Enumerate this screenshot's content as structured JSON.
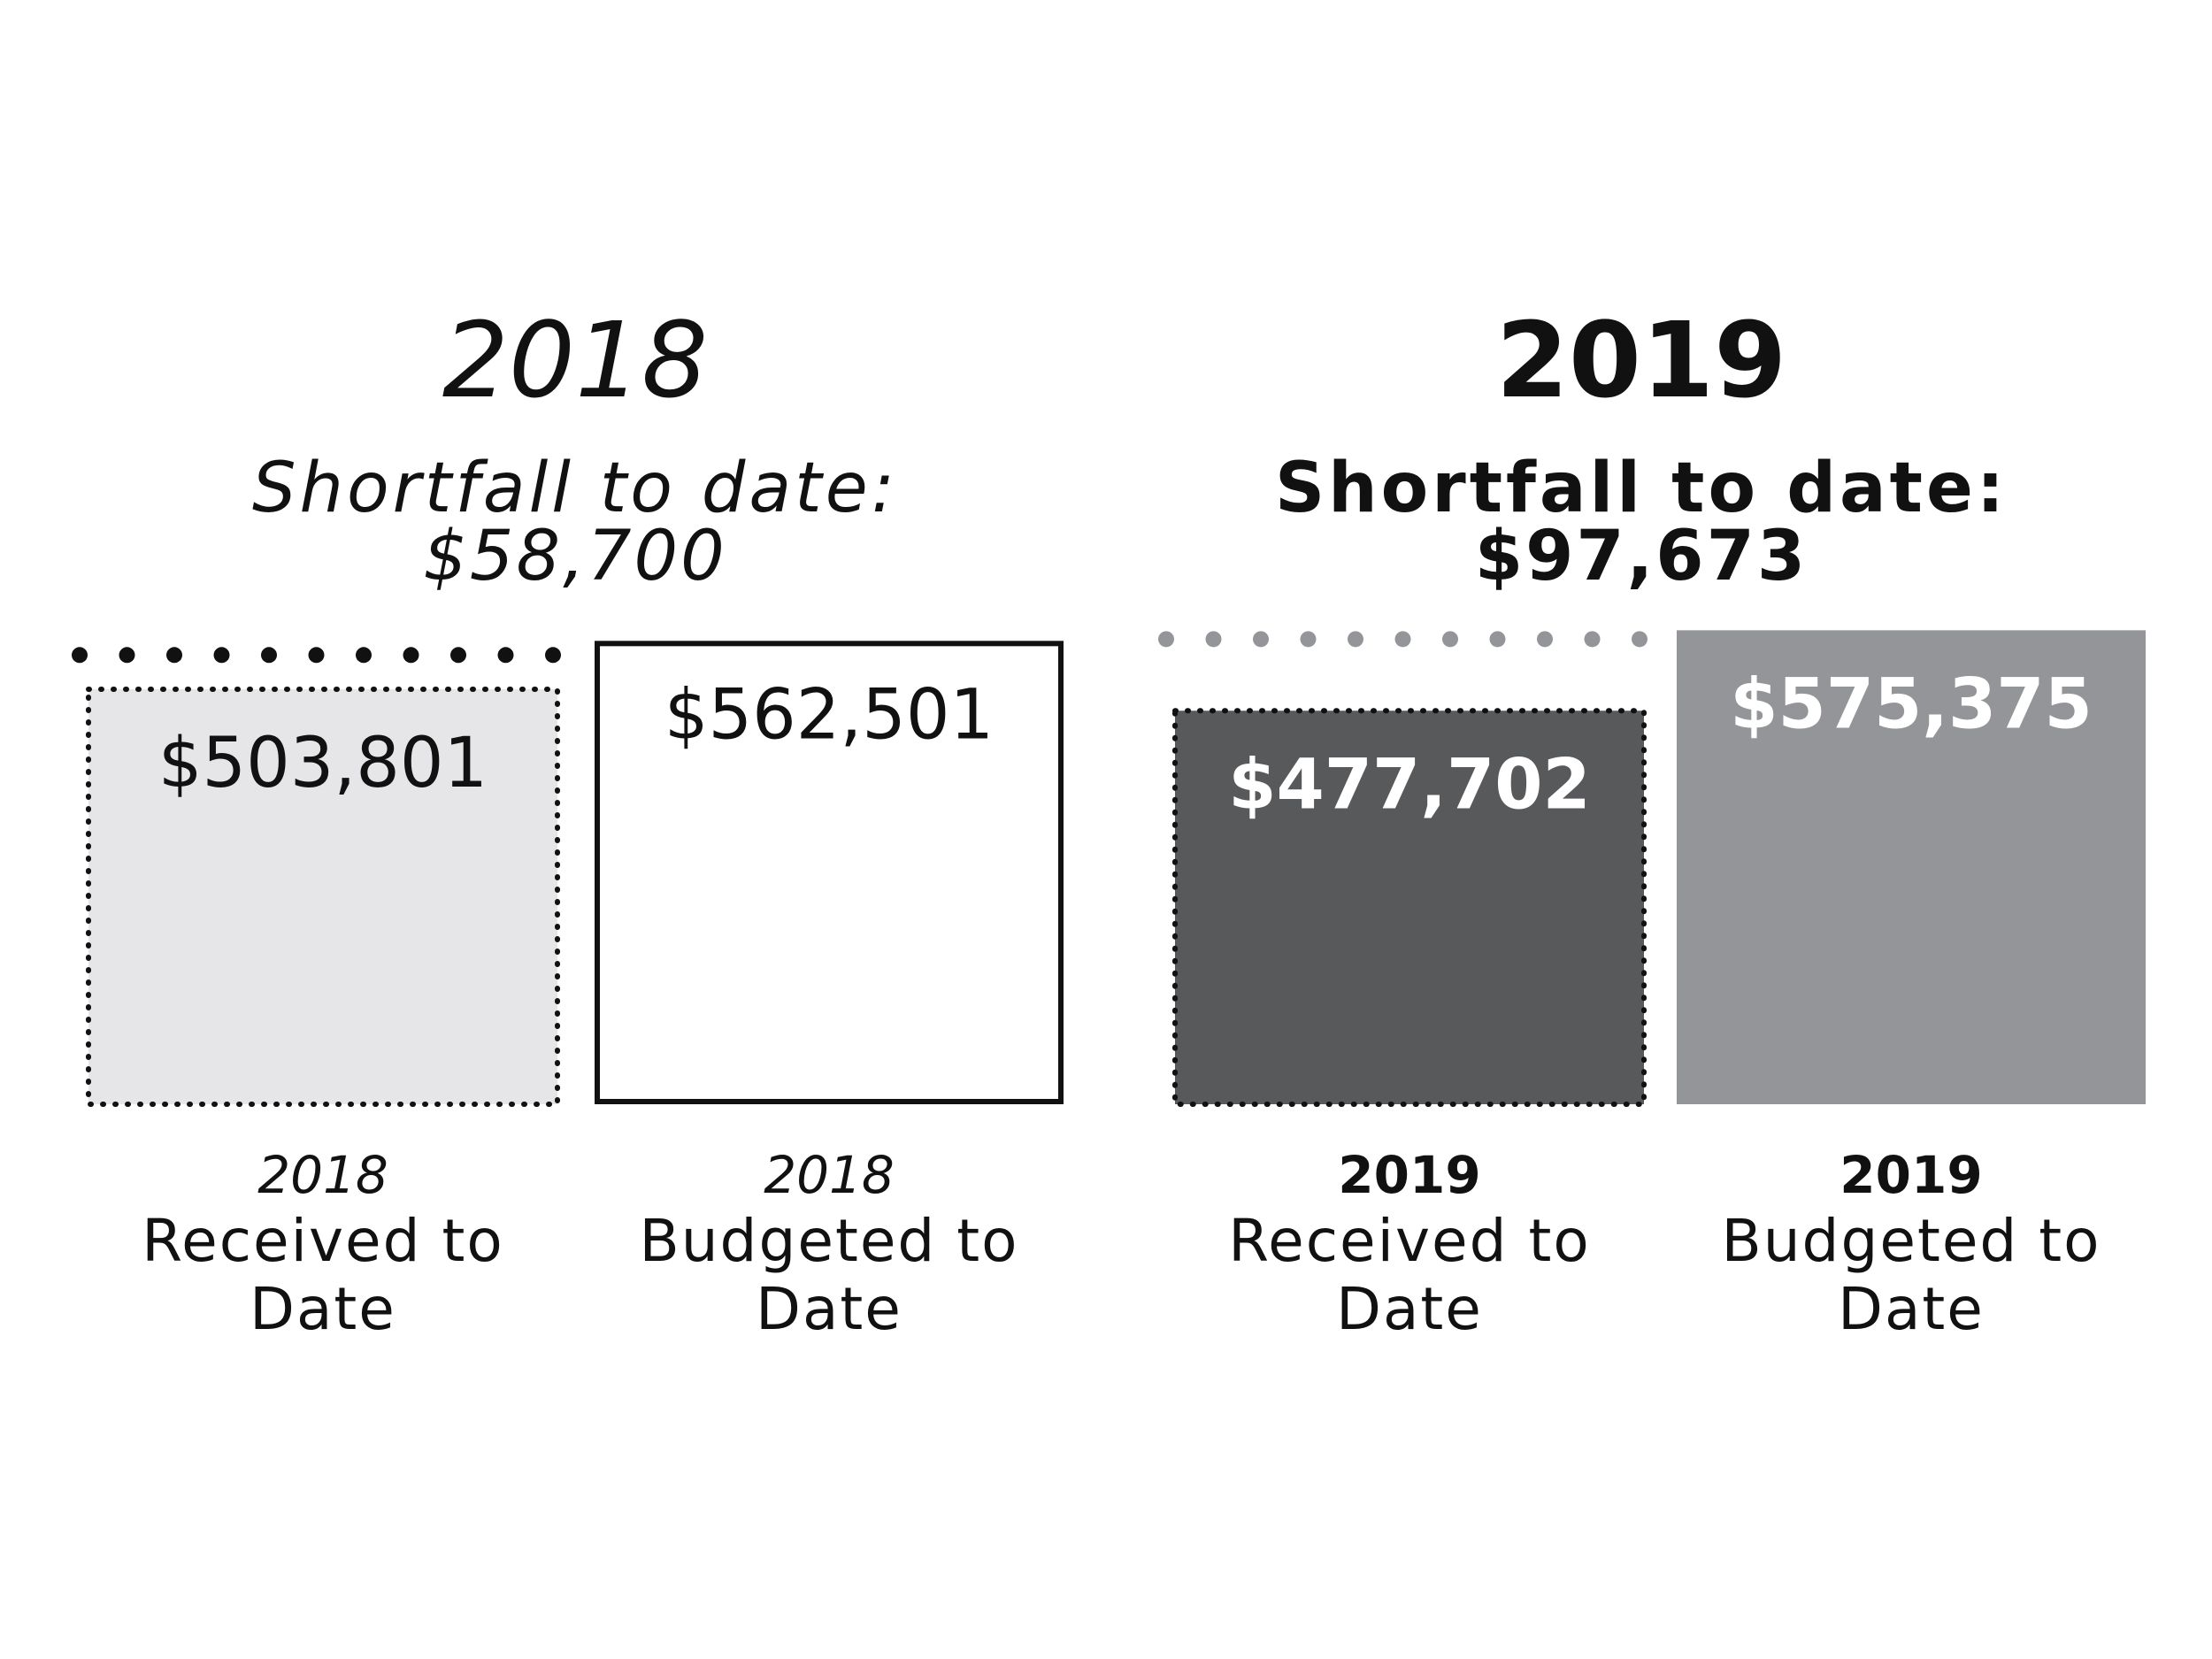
{
  "chart_data": {
    "type": "bar",
    "groups": [
      {
        "year": "2018",
        "style": "italic",
        "shortfall_label": "Shortfall to date:",
        "shortfall_value": "$58,700",
        "bars": [
          {
            "category_year": "2018",
            "category_line1": "Received to",
            "category_line2": "Date",
            "value": 503801,
            "value_label": "$503,801",
            "fill": "#e6e6e8",
            "label_color": "#111111",
            "border": "dotted"
          },
          {
            "category_year": "2018",
            "category_line1": "Budgeted to",
            "category_line2": "Date",
            "value": 562501,
            "value_label": "$562,501",
            "fill": "#ffffff",
            "label_color": "#111111",
            "border": "solid"
          }
        ]
      },
      {
        "year": "2019",
        "style": "bold",
        "shortfall_label": "Shortfall to date:",
        "shortfall_value": "$97,673",
        "bars": [
          {
            "category_year": "2019",
            "category_line1": "Received to",
            "category_line2": "Date",
            "value": 477702,
            "value_label": "$477,702",
            "fill": "#58595b",
            "label_color": "#ffffff",
            "border": "dotted"
          },
          {
            "category_year": "2019",
            "category_line1": "Budgeted to",
            "category_line2": "Date",
            "value": 575375,
            "value_label": "$575,375",
            "fill": "#939598",
            "label_color": "#ffffff",
            "border": "none"
          }
        ]
      }
    ],
    "colors": {
      "text": "#111111",
      "dots_2018": "#111111",
      "dots_2019": "#939598"
    }
  }
}
